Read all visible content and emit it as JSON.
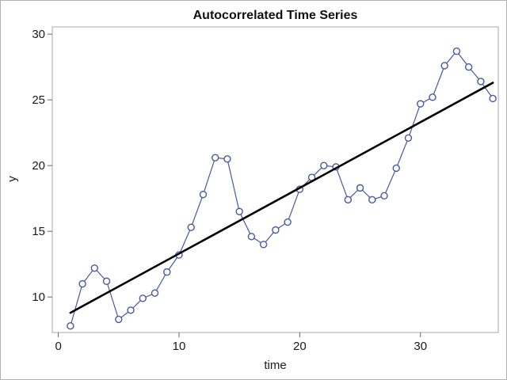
{
  "chart_data": {
    "type": "line",
    "title": "Autocorrelated Time Series",
    "xlabel": "time",
    "ylabel": "y",
    "x": [
      1,
      2,
      3,
      4,
      5,
      6,
      7,
      8,
      9,
      10,
      11,
      12,
      13,
      14,
      15,
      16,
      17,
      18,
      19,
      20,
      21,
      22,
      23,
      24,
      25,
      26,
      27,
      28,
      29,
      30,
      31,
      32,
      33,
      34,
      35,
      36
    ],
    "y": [
      7.8,
      11.0,
      12.2,
      11.2,
      8.3,
      9.0,
      9.9,
      10.3,
      11.9,
      13.2,
      15.3,
      17.8,
      20.6,
      20.5,
      16.5,
      14.6,
      14.0,
      15.1,
      15.7,
      18.2,
      19.1,
      20.0,
      19.9,
      17.4,
      18.3,
      17.4,
      17.7,
      19.8,
      22.1,
      24.7,
      25.2,
      27.6,
      28.7,
      27.5,
      26.4,
      25.1
    ],
    "series_name": "observed-series",
    "marker": "open-circle",
    "trend_line": {
      "name": "linear-trend",
      "x1": 1,
      "y1": 8.8,
      "x2": 36,
      "y2": 26.3
    },
    "x_ticks": [
      0,
      10,
      20,
      30
    ],
    "y_ticks": [
      10,
      15,
      20,
      25,
      30
    ],
    "xlim": [
      -0.5,
      36.45
    ],
    "ylim": [
      7.3,
      30.55
    ],
    "grid": false,
    "legend": "none",
    "colors": {
      "series": "#47599f",
      "trend": "#000000",
      "frame": "#a9a9a9",
      "tick": "#666666",
      "tick_text": "#1a1a1a",
      "background": "#ffffff",
      "outer_border": "#b0b0b0"
    }
  }
}
